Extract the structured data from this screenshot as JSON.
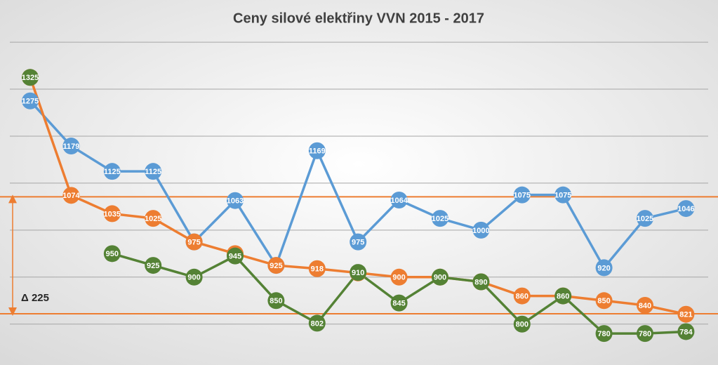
{
  "chart_data": {
    "type": "line",
    "title": "Ceny silové elektřiny VVN 2015 - 2017",
    "categories": [
      null,
      null,
      null,
      null,
      null,
      null,
      null,
      null,
      null,
      null,
      null,
      null,
      null,
      null,
      null,
      null,
      null
    ],
    "series": [
      {
        "color": "#5b9bd5",
        "values": [
          1275,
          1179,
          1125,
          1125,
          975,
          1063,
          925,
          1169,
          975,
          1064,
          1025,
          1000,
          1075,
          1075,
          920,
          1025,
          1046
        ]
      },
      {
        "color": "#ed7d31",
        "values": [
          1325,
          1074,
          1035,
          1025,
          975,
          950,
          925,
          918,
          909,
          900,
          900,
          890,
          860,
          860,
          850,
          840,
          821
        ]
      },
      {
        "color": "#548235",
        "values": [
          1325,
          null,
          950,
          925,
          900,
          945,
          850,
          802,
          910,
          845,
          900,
          890,
          800,
          860,
          780,
          780,
          784
        ]
      }
    ],
    "ylim": [
      713,
      1430
    ],
    "yticks": [
      800,
      900,
      1000,
      1100,
      1200,
      1300,
      1400
    ],
    "grid": true,
    "reference_lines": {
      "values": [
        1071,
        822
      ],
      "color": "#ed7d31"
    },
    "annotation": "Δ 225"
  }
}
